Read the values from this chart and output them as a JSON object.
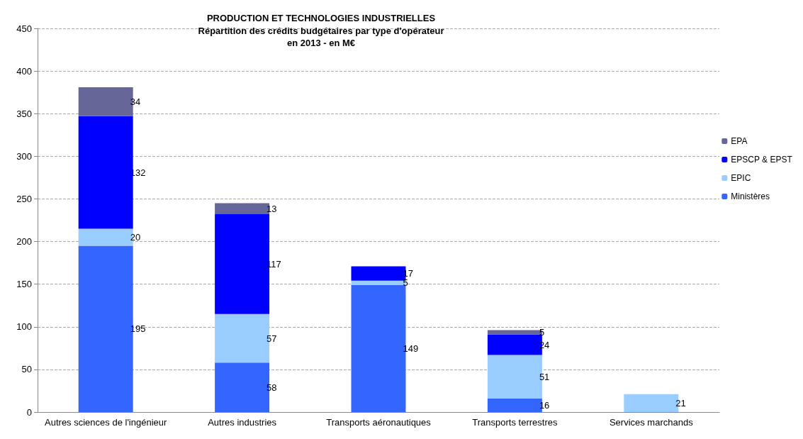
{
  "chart_data": {
    "type": "bar",
    "title": "PRODUCTION ET TECHNOLOGIES INDUSTRIELLES",
    "subtitle": "Répartition des crédits budgétaires par type d'opérateur\nen 2013 - en M€",
    "categories": [
      "Autres sciences de l'ingénieur",
      "Autres industries",
      "Transports aéronautiques",
      "Transports terrestres",
      "Services marchands"
    ],
    "stacked": true,
    "series": [
      {
        "name": "Ministères",
        "color": "#3366ff",
        "values": [
          195,
          58,
          149,
          16,
          null
        ]
      },
      {
        "name": "EPIC",
        "color": "#99ccff",
        "values": [
          20,
          57,
          5,
          51,
          21
        ]
      },
      {
        "name": "EPSCP & EPST",
        "color": "#0000ff",
        "values": [
          132,
          117,
          17,
          24,
          null
        ]
      },
      {
        "name": "EPA",
        "color": "#666699",
        "values": [
          34,
          13,
          null,
          5,
          null
        ]
      }
    ],
    "ylim": [
      0,
      450
    ],
    "yticks": [
      0,
      50,
      100,
      150,
      200,
      250,
      300,
      350,
      400,
      450
    ],
    "grid": "y",
    "legend": "right",
    "data_labels": true
  }
}
